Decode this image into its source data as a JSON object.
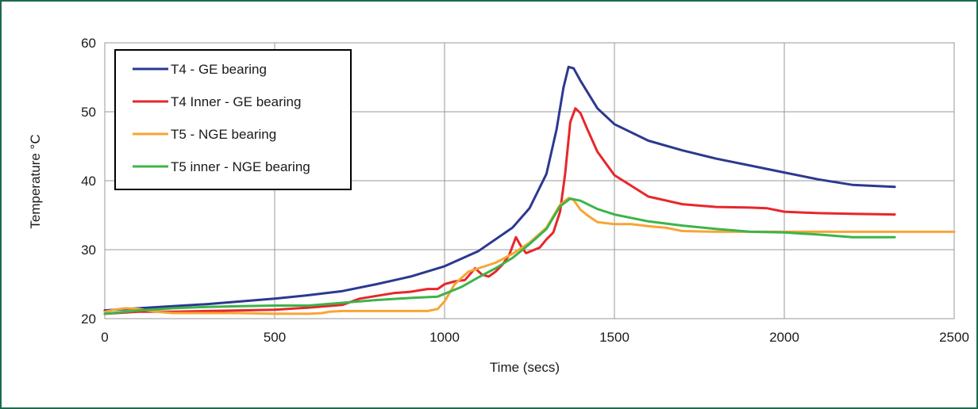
{
  "chart_data": {
    "type": "line",
    "xlabel": "Time (secs)",
    "ylabel": "Temperature °C",
    "xlim": [
      0,
      2500
    ],
    "ylim": [
      20,
      60
    ],
    "xticks": [
      0,
      500,
      1000,
      1500,
      2000,
      2500
    ],
    "yticks": [
      20,
      30,
      40,
      50,
      60
    ],
    "grid": true,
    "legend_position": "top-left",
    "series": [
      {
        "name": "T4 - GE bearing",
        "color": "#2b3990",
        "x": [
          0,
          100,
          200,
          300,
          400,
          500,
          600,
          700,
          800,
          900,
          1000,
          1100,
          1200,
          1250,
          1300,
          1330,
          1350,
          1365,
          1380,
          1400,
          1450,
          1500,
          1600,
          1700,
          1800,
          1900,
          2000,
          2100,
          2200,
          2325
        ],
        "y": [
          21.2,
          21.5,
          21.8,
          22.1,
          22.5,
          22.9,
          23.4,
          24.0,
          25.0,
          26.1,
          27.6,
          29.8,
          33.2,
          36.0,
          41.0,
          47.5,
          53.5,
          56.5,
          56.3,
          54.5,
          50.5,
          48.2,
          45.8,
          44.4,
          43.2,
          42.2,
          41.2,
          40.2,
          39.4,
          39.1
        ]
      },
      {
        "name": "T4 Inner - GE bearing",
        "color": "#e8262b",
        "x": [
          0,
          100,
          200,
          300,
          400,
          500,
          600,
          700,
          750,
          800,
          850,
          900,
          950,
          980,
          1000,
          1030,
          1060,
          1090,
          1110,
          1130,
          1150,
          1170,
          1190,
          1210,
          1225,
          1240,
          1260,
          1280,
          1300,
          1320,
          1340,
          1355,
          1370,
          1385,
          1400,
          1420,
          1450,
          1500,
          1600,
          1700,
          1800,
          1900,
          1950,
          2000,
          2100,
          2200,
          2325
        ],
        "y": [
          20.7,
          21.0,
          21.0,
          21.1,
          21.2,
          21.3,
          21.6,
          22.0,
          22.9,
          23.3,
          23.7,
          23.9,
          24.3,
          24.3,
          25.0,
          25.4,
          25.6,
          27.3,
          26.4,
          26.1,
          26.8,
          27.8,
          29.2,
          31.8,
          30.5,
          29.5,
          29.9,
          30.3,
          31.5,
          32.5,
          35.5,
          41.0,
          48.5,
          50.5,
          49.8,
          47.5,
          44.2,
          40.8,
          37.7,
          36.6,
          36.2,
          36.1,
          36.0,
          35.5,
          35.3,
          35.2,
          35.1
        ]
      },
      {
        "name": "T5 - NGE bearing",
        "color": "#f7a535",
        "x": [
          0,
          30,
          60,
          100,
          150,
          200,
          300,
          400,
          500,
          600,
          640,
          660,
          700,
          800,
          900,
          950,
          980,
          1000,
          1030,
          1070,
          1100,
          1150,
          1200,
          1250,
          1300,
          1340,
          1365,
          1380,
          1400,
          1420,
          1450,
          1500,
          1550,
          1600,
          1650,
          1700,
          1800,
          1900,
          2000,
          2100,
          2200,
          2300,
          2400,
          2500
        ],
        "y": [
          21.0,
          21.3,
          21.5,
          21.4,
          21.0,
          20.8,
          20.8,
          20.8,
          20.7,
          20.7,
          20.8,
          21.0,
          21.1,
          21.1,
          21.1,
          21.1,
          21.4,
          22.5,
          25.0,
          26.8,
          27.3,
          28.1,
          29.4,
          31.0,
          33.2,
          36.5,
          37.5,
          37.2,
          35.8,
          35.0,
          34.0,
          33.7,
          33.7,
          33.4,
          33.2,
          32.7,
          32.6,
          32.6,
          32.6,
          32.6,
          32.6,
          32.6,
          32.6,
          32.6
        ]
      },
      {
        "name": "T5 inner - NGE bearing",
        "color": "#3cb44a",
        "x": [
          0,
          100,
          200,
          300,
          400,
          500,
          600,
          700,
          800,
          900,
          980,
          1000,
          1050,
          1100,
          1150,
          1200,
          1250,
          1300,
          1340,
          1370,
          1400,
          1450,
          1500,
          1600,
          1700,
          1800,
          1900,
          2000,
          2100,
          2200,
          2325
        ],
        "y": [
          20.7,
          21.2,
          21.5,
          21.7,
          21.8,
          21.9,
          21.9,
          22.3,
          22.7,
          23.0,
          23.2,
          23.6,
          24.6,
          26.0,
          27.3,
          28.8,
          30.8,
          33.0,
          36.3,
          37.4,
          37.1,
          35.9,
          35.1,
          34.1,
          33.5,
          33.0,
          32.6,
          32.5,
          32.2,
          31.8,
          31.8
        ]
      }
    ]
  }
}
